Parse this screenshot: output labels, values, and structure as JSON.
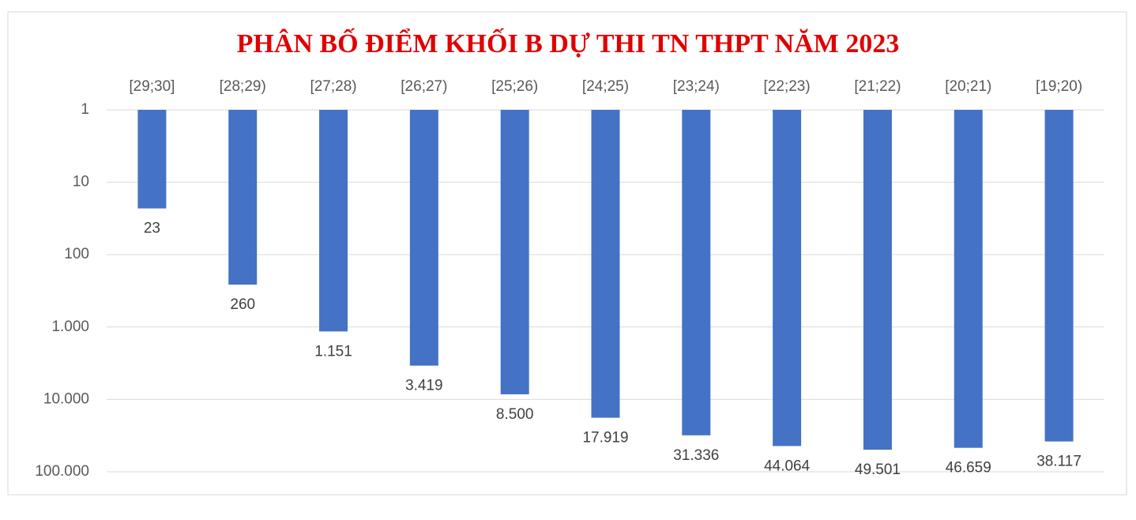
{
  "chart_data": {
    "type": "bar",
    "title": "PHÂN BỐ ĐIỂM KHỐI B DỰ THI TN THPT NĂM 2023",
    "categories": [
      "[29;30]",
      "[28;29)",
      "[27;28)",
      "[26;27)",
      "[25;26)",
      "[24;25)",
      "[23;24)",
      "[22;23)",
      "[21;22)",
      "[20;21)",
      "[19;20)"
    ],
    "values": [
      23,
      260,
      1151,
      3419,
      8500,
      17919,
      31336,
      44064,
      49501,
      46659,
      38117
    ],
    "value_labels": [
      "23",
      "260",
      "1.151",
      "3.419",
      "8.500",
      "17.919",
      "31.336",
      "44.064",
      "49.501",
      "46.659",
      "38.117"
    ],
    "color": "#4472c4",
    "ylim": [
      1,
      100000
    ],
    "yticks": [
      1,
      10,
      100,
      {
        "value": 1000,
        "label": "1.000"
      },
      {
        "value": 10000,
        "label": "10.000"
      },
      {
        "value": 100000,
        "label": "100.000"
      }
    ],
    "log_scale": true,
    "y_inverted": true,
    "grid": true
  }
}
